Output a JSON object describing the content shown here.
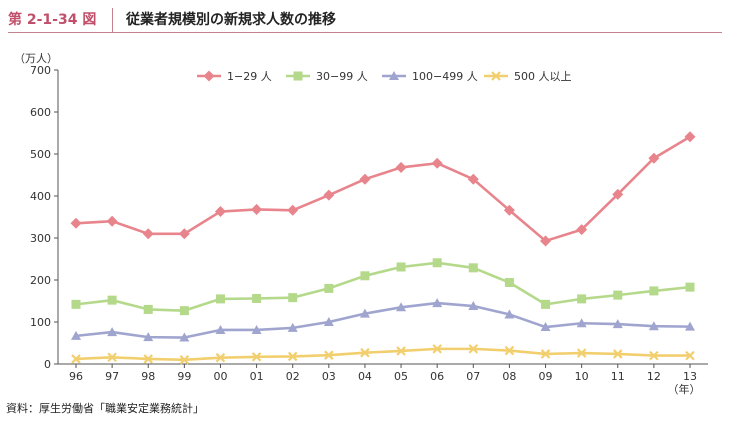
{
  "figure": {
    "number": "第 2-1-34 図",
    "title": "従業者規模別の新規求人数の推移",
    "source": "資料：厚生労働省「職業安定業務統計」"
  },
  "chart_data": {
    "type": "line",
    "ylabel": "（万人）",
    "xlabel": "（年）",
    "ylim": [
      0,
      700
    ],
    "yticks": [
      0,
      100,
      200,
      300,
      400,
      500,
      600,
      700
    ],
    "grid": false,
    "legend_position": "top",
    "categories": [
      "96",
      "97",
      "98",
      "99",
      "00",
      "01",
      "02",
      "03",
      "04",
      "05",
      "06",
      "07",
      "08",
      "09",
      "10",
      "11",
      "12",
      "13"
    ],
    "series": [
      {
        "name": "1−29 人",
        "color": "#e8848c",
        "marker": "diamond",
        "values": [
          335,
          340,
          310,
          310,
          363,
          368,
          366,
          402,
          440,
          468,
          478,
          440,
          366,
          293,
          320,
          404,
          490,
          541
        ]
      },
      {
        "name": "30−99 人",
        "color": "#b5d98a",
        "marker": "square",
        "values": [
          142,
          152,
          130,
          127,
          155,
          156,
          158,
          180,
          210,
          231,
          241,
          229,
          194,
          142,
          155,
          164,
          174,
          183
        ]
      },
      {
        "name": "100−499 人",
        "color": "#a0a5cf",
        "marker": "triangle",
        "values": [
          67,
          76,
          64,
          63,
          81,
          81,
          86,
          100,
          120,
          135,
          145,
          138,
          118,
          88,
          97,
          95,
          90,
          89
        ]
      },
      {
        "name": "500 人以上",
        "color": "#f2cf6e",
        "marker": "x",
        "values": [
          12,
          16,
          12,
          10,
          15,
          17,
          18,
          21,
          27,
          31,
          36,
          36,
          32,
          24,
          26,
          24,
          20,
          20
        ]
      }
    ]
  }
}
